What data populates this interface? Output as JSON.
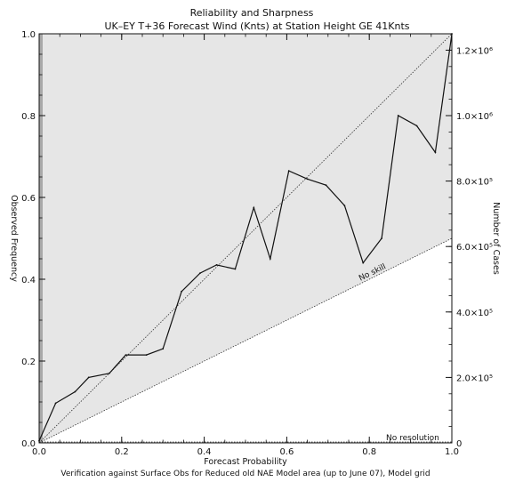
{
  "chart_data": {
    "type": "line",
    "title": "Reliability and Sharpness",
    "subtitle": "UK–EY T+36 Forecast Wind (Knts) at Station Height GE 41Knts",
    "xlabel": "Forecast Probability",
    "ylabel": "Observed Frequency",
    "y2label": "Number of Cases",
    "footer": "Verification against Surface Obs for Reduced old NAE Model area (up to June 07),  Model grid",
    "xlim": [
      0,
      1
    ],
    "ylim": [
      0,
      1
    ],
    "y2lim": [
      0,
      1250000
    ],
    "x_ticks": [
      {
        "value": 0.0,
        "label": "0.0"
      },
      {
        "value": 0.2,
        "label": "0.2"
      },
      {
        "value": 0.4,
        "label": "0.4"
      },
      {
        "value": 0.6,
        "label": "0.6"
      },
      {
        "value": 0.8,
        "label": "0.8"
      },
      {
        "value": 1.0,
        "label": "1.0"
      }
    ],
    "y_ticks": [
      {
        "value": 0.0,
        "label": "0.0"
      },
      {
        "value": 0.2,
        "label": "0.2"
      },
      {
        "value": 0.4,
        "label": "0.4"
      },
      {
        "value": 0.6,
        "label": "0.6"
      },
      {
        "value": 0.8,
        "label": "0.8"
      },
      {
        "value": 1.0,
        "label": "1.0"
      }
    ],
    "y2_ticks": [
      {
        "value": 0,
        "label": "0"
      },
      {
        "value": 200000,
        "label": "2.0×10⁵"
      },
      {
        "value": 400000,
        "label": "4.0×10⁵"
      },
      {
        "value": 600000,
        "label": "6.0×10⁵"
      },
      {
        "value": 800000,
        "label": "8.0×10⁵"
      },
      {
        "value": 1000000,
        "label": "1.0×10⁶"
      },
      {
        "value": 1200000,
        "label": "1.2×10⁶"
      }
    ],
    "annotations": {
      "no_skill": "No skill",
      "no_resolution": "No resolution"
    },
    "series": [
      {
        "x": [
          0.0,
          0.04,
          0.087,
          0.12,
          0.17,
          0.21,
          0.26,
          0.3,
          0.345,
          0.39,
          0.43,
          0.475,
          0.52,
          0.56,
          0.605,
          0.65,
          0.695,
          0.74,
          0.785,
          0.83,
          0.87,
          0.915,
          0.96,
          1.0
        ],
        "values": [
          0.005,
          0.097,
          0.125,
          0.16,
          0.17,
          0.215,
          0.215,
          0.23,
          0.37,
          0.415,
          0.435,
          0.425,
          0.575,
          0.45,
          0.665,
          0.645,
          0.63,
          0.58,
          0.44,
          0.5,
          0.8,
          0.775,
          0.71,
          1.0
        ]
      }
    ],
    "reference_lines": {
      "perfect_reliability": [
        [
          0,
          0
        ],
        [
          1,
          1
        ]
      ],
      "no_skill": [
        [
          0,
          0
        ],
        [
          1,
          0.5
        ]
      ],
      "no_resolution": [
        [
          0,
          0
        ],
        [
          1,
          0
        ]
      ]
    },
    "colors": {
      "skill_region": "#e6e6e6",
      "line": "#111111",
      "axis": "#111111",
      "left_bar": "#a9a9a9"
    }
  }
}
